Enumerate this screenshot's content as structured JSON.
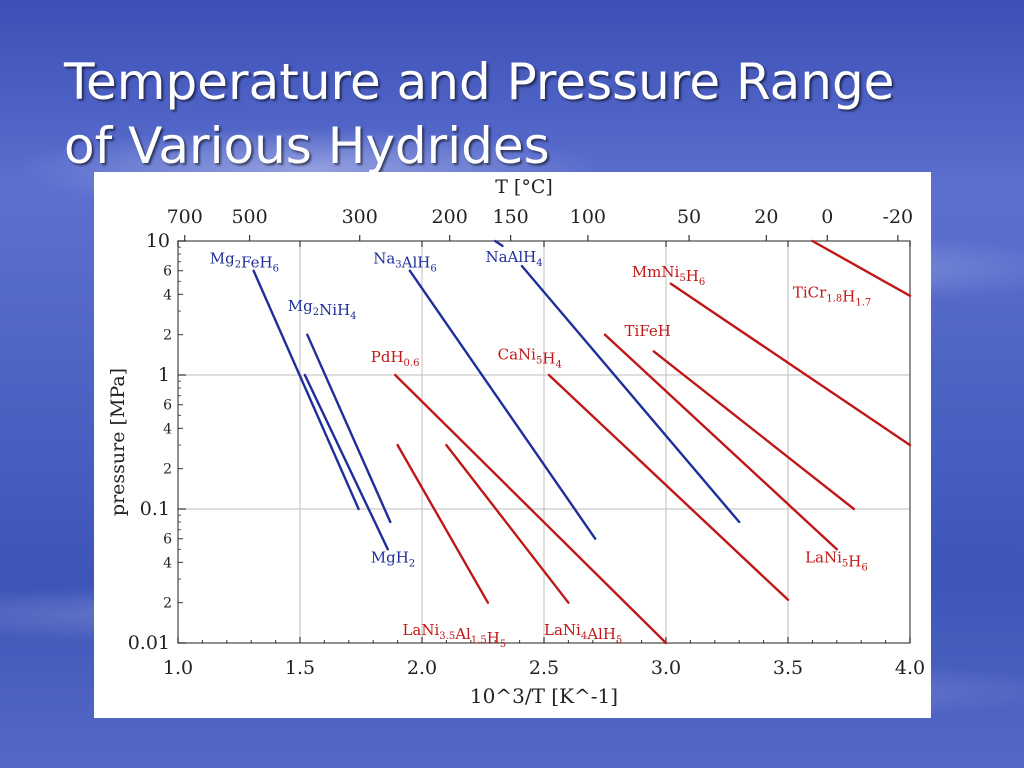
{
  "slide": {
    "title_line1": "Temperature and Pressure Range",
    "title_line2": "of Various Hydrides"
  },
  "colors": {
    "blue_series": "#1f2f9a",
    "red_series": "#c01818",
    "grid": "#bdbdbd"
  },
  "chart_data": {
    "type": "line",
    "title": "",
    "xlabel": "10^3/T [K^-1]",
    "ylabel": "pressure [MPa]",
    "top_axis_label": "T [°C]",
    "xlim": [
      1.0,
      4.0
    ],
    "ylim": [
      0.01,
      10
    ],
    "yscale": "log",
    "grid": true,
    "x_ticks": [
      "1.0",
      "1.5",
      "2.0",
      "2.5",
      "3.0",
      "3.5",
      "4.0"
    ],
    "y_major_ticks": [
      {
        "value": 10,
        "label": "10"
      },
      {
        "value": 1,
        "label": "1"
      },
      {
        "value": 0.1,
        "label": "0.1"
      },
      {
        "value": 0.01,
        "label": "0.01"
      }
    ],
    "y_minor_ticks": [
      {
        "value": 6,
        "label": "6"
      },
      {
        "value": 4,
        "label": "4"
      },
      {
        "value": 2,
        "label": "2"
      },
      {
        "value": 0.6,
        "label": "6"
      },
      {
        "value": 0.4,
        "label": "4"
      },
      {
        "value": 0.2,
        "label": "2"
      },
      {
        "value": 0.06,
        "label": "6"
      },
      {
        "value": 0.04,
        "label": "4"
      },
      {
        "value": 0.02,
        "label": "2"
      }
    ],
    "top_ticks": [
      {
        "t": 700,
        "label": "700"
      },
      {
        "t": 500,
        "label": "500"
      },
      {
        "t": 300,
        "label": "300"
      },
      {
        "t": 200,
        "label": "200"
      },
      {
        "t": 150,
        "label": "150"
      },
      {
        "t": 100,
        "label": "100"
      },
      {
        "t": 50,
        "label": "50"
      },
      {
        "t": 20,
        "label": "20"
      },
      {
        "t": 0,
        "label": "0"
      },
      {
        "t": -20,
        "label": "-20"
      }
    ],
    "series": [
      {
        "name": "Mg2FeH6",
        "color_group": "blue",
        "x": [
          1.31,
          1.74
        ],
        "y": [
          6.0,
          0.1
        ],
        "label": {
          "base": "Mg",
          "sub": "2",
          "rest": [
            [
              "FeH",
              ""
            ],
            [
              "",
              "6"
            ]
          ]
        }
      },
      {
        "name": "Mg2NiH4",
        "color_group": "blue",
        "x": [
          1.53,
          1.87
        ],
        "y": [
          2.0,
          0.08
        ],
        "label": {
          "base": "Mg",
          "sub": "2",
          "rest": [
            [
              "NiH",
              ""
            ],
            [
              "",
              "4"
            ]
          ]
        }
      },
      {
        "name": "MgH2",
        "color_group": "blue",
        "x": [
          1.52,
          1.86
        ],
        "y": [
          1.0,
          0.05
        ],
        "label": {
          "base": "MgH",
          "sub": "2",
          "rest": []
        }
      },
      {
        "name": "Na3AlH6",
        "color_group": "blue",
        "x": [
          1.95,
          2.71
        ],
        "y": [
          6.0,
          0.06
        ],
        "label": {
          "base": "Na",
          "sub": "3",
          "rest": [
            [
              "AlH",
              ""
            ],
            [
              "",
              "6"
            ]
          ]
        }
      },
      {
        "name": "NaAlH4",
        "color_group": "blue",
        "x": [
          2.3,
          2.33
        ],
        "y": [
          10.0,
          9.2
        ],
        "label": {
          "base": "NaAlH",
          "sub": "4",
          "rest": []
        }
      },
      {
        "name": "NaAlH4-b",
        "color_group": "blue",
        "x": [
          2.41,
          3.3
        ],
        "y": [
          6.5,
          0.08
        ],
        "label": null
      },
      {
        "name": "PdH0.6",
        "color_group": "red",
        "x": [
          1.89,
          3.0
        ],
        "y": [
          1.0,
          0.01
        ],
        "label": {
          "base": "PdH",
          "sub": "0.6",
          "rest": []
        }
      },
      {
        "name": "CaNi5H4",
        "color_group": "red",
        "x": [
          2.52,
          3.5
        ],
        "y": [
          1.0,
          0.021
        ],
        "label": {
          "base": "CaNi",
          "sub": "5",
          "rest": [
            [
              "H",
              ""
            ],
            [
              "",
              "4"
            ]
          ]
        }
      },
      {
        "name": "TiFeH",
        "color_group": "red",
        "x": [
          2.75,
          3.7
        ],
        "y": [
          2.0,
          0.05
        ],
        "label": {
          "base": "TiFeH",
          "sub": "",
          "rest": []
        }
      },
      {
        "name": "LaNi5H6",
        "color_group": "red",
        "x": [
          2.95,
          3.77
        ],
        "y": [
          1.5,
          0.1
        ],
        "label": {
          "base": "LaNi",
          "sub": "5",
          "rest": [
            [
              "H",
              ""
            ],
            [
              "",
              "6"
            ]
          ]
        }
      },
      {
        "name": "MmNi5H6",
        "color_group": "red",
        "x": [
          3.02,
          4.0
        ],
        "y": [
          4.8,
          0.3
        ],
        "label": {
          "base": "MmNi",
          "sub": "5",
          "rest": [
            [
              "H",
              ""
            ],
            [
              "",
              "6"
            ]
          ]
        }
      },
      {
        "name": "TiCr1.8H1.7",
        "color_group": "red",
        "x": [
          3.6,
          4.0
        ],
        "y": [
          10.0,
          3.9
        ],
        "label": {
          "base": "TiCr",
          "sub": "1.8",
          "rest": [
            [
              "H",
              ""
            ],
            [
              "",
              "1.7"
            ]
          ]
        }
      },
      {
        "name": "LaNi3.5Al1.5H5",
        "color_group": "red",
        "x": [
          1.9,
          2.27
        ],
        "y": [
          0.3,
          0.02
        ],
        "label": {
          "base": "LaNi",
          "sub": "3.5",
          "rest": [
            [
              "Al",
              ""
            ],
            [
              "",
              "1.5"
            ],
            [
              "H",
              ""
            ],
            [
              "",
              "5"
            ]
          ]
        }
      },
      {
        "name": "LaNi4AlH5",
        "color_group": "red",
        "x": [
          2.1,
          2.6
        ],
        "y": [
          0.3,
          0.02
        ],
        "label": {
          "base": "LaNi",
          "sub": "4",
          "rest": [
            [
              "AlH",
              ""
            ],
            [
              "",
              "5"
            ]
          ]
        }
      }
    ],
    "annotations": [
      {
        "text_parts": [
          [
            "Mg",
            ""
          ],
          [
            "",
            "2"
          ],
          [
            "FeH",
            ""
          ],
          [
            "",
            "6"
          ]
        ],
        "x": 1.13,
        "y": 6.8,
        "color_group": "blue"
      },
      {
        "text_parts": [
          [
            "Mg",
            ""
          ],
          [
            "",
            "2"
          ],
          [
            "NiH",
            ""
          ],
          [
            "",
            "4"
          ]
        ],
        "x": 1.45,
        "y": 3.0,
        "color_group": "blue"
      },
      {
        "text_parts": [
          [
            "MgH",
            ""
          ],
          [
            "",
            "2"
          ]
        ],
        "x": 1.79,
        "y": 0.04,
        "color_group": "blue"
      },
      {
        "text_parts": [
          [
            "Na",
            ""
          ],
          [
            "",
            "3"
          ],
          [
            "AlH",
            ""
          ],
          [
            "",
            "6"
          ]
        ],
        "x": 1.8,
        "y": 6.8,
        "color_group": "blue"
      },
      {
        "text_parts": [
          [
            "NaAlH",
            ""
          ],
          [
            "",
            "4"
          ]
        ],
        "x": 2.26,
        "y": 7.0,
        "color_group": "blue"
      },
      {
        "text_parts": [
          [
            "PdH",
            ""
          ],
          [
            "",
            "0.6"
          ]
        ],
        "x": 1.79,
        "y": 1.25,
        "color_group": "red"
      },
      {
        "text_parts": [
          [
            "CaNi",
            ""
          ],
          [
            "",
            "5"
          ],
          [
            "H",
            ""
          ],
          [
            "",
            "4"
          ]
        ],
        "x": 2.31,
        "y": 1.3,
        "color_group": "red"
      },
      {
        "text_parts": [
          [
            "TiFeH",
            ""
          ]
        ],
        "x": 2.83,
        "y": 1.95,
        "color_group": "red"
      },
      {
        "text_parts": [
          [
            "MmNi",
            ""
          ],
          [
            "",
            "5"
          ],
          [
            "H",
            ""
          ],
          [
            "",
            "6"
          ]
        ],
        "x": 2.86,
        "y": 5.4,
        "color_group": "red"
      },
      {
        "text_parts": [
          [
            "TiCr",
            ""
          ],
          [
            "",
            "1.8"
          ],
          [
            "H",
            ""
          ],
          [
            "",
            "1.7"
          ]
        ],
        "x": 3.52,
        "y": 3.8,
        "color_group": "red"
      },
      {
        "text_parts": [
          [
            "LaNi",
            ""
          ],
          [
            "",
            "5"
          ],
          [
            "H",
            ""
          ],
          [
            "",
            "6"
          ]
        ],
        "x": 3.57,
        "y": 0.04,
        "color_group": "red"
      },
      {
        "text_parts": [
          [
            "LaNi",
            ""
          ],
          [
            "",
            "3.5"
          ],
          [
            "Al",
            ""
          ],
          [
            "",
            "1.5"
          ],
          [
            "H",
            ""
          ],
          [
            "",
            "5"
          ]
        ],
        "x": 1.92,
        "y": 0.0115,
        "color_group": "red"
      },
      {
        "text_parts": [
          [
            "LaNi",
            ""
          ],
          [
            "",
            "4"
          ],
          [
            "AlH",
            ""
          ],
          [
            "",
            "5"
          ]
        ],
        "x": 2.5,
        "y": 0.0115,
        "color_group": "red"
      }
    ]
  }
}
